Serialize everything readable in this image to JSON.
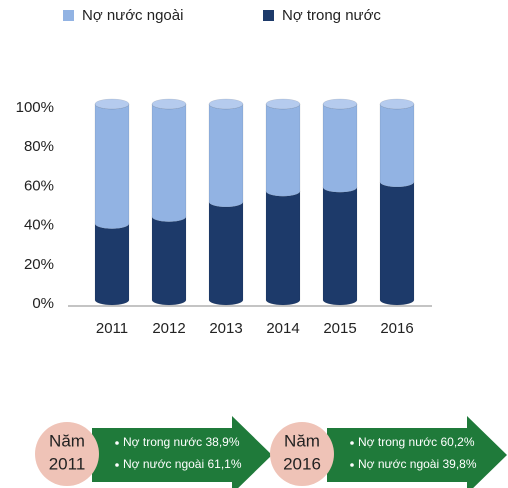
{
  "chart_data": {
    "type": "stacked_bar",
    "categories": [
      "2011",
      "2012",
      "2013",
      "2014",
      "2015",
      "2016"
    ],
    "series": [
      {
        "name": "Nợ trong nước",
        "color": "#1d3a6a",
        "values": [
          38.9,
          42.5,
          50,
          55.5,
          57.5,
          60.2
        ]
      },
      {
        "name": "Nợ nước ngoài",
        "color": "#92b3e3",
        "values": [
          61.1,
          57.5,
          50,
          44.5,
          42.5,
          39.8
        ]
      }
    ],
    "ylim": [
      0,
      100
    ],
    "yticks": [
      {
        "value": 0,
        "label": "0%"
      },
      {
        "value": 20,
        "label": "20%"
      },
      {
        "value": 40,
        "label": "40%"
      },
      {
        "value": 60,
        "label": "60%"
      },
      {
        "value": 80,
        "label": "80%"
      },
      {
        "value": 100,
        "label": "100%"
      }
    ]
  },
  "panels": [
    {
      "year_word": "Năm",
      "year": "2011",
      "lines": [
        "Nợ trong nước 38,9%",
        "Nợ nước ngoài 61,1%"
      ]
    },
    {
      "year_word": "Năm",
      "year": "2016",
      "lines": [
        "Nợ trong nước 60,2%",
        "Nợ nước ngoài 39,8%"
      ]
    }
  ]
}
